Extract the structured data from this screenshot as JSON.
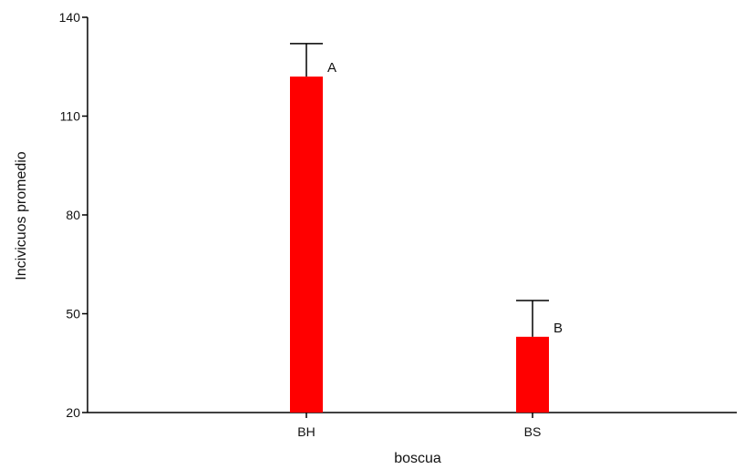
{
  "chart_data": {
    "type": "bar",
    "title": "",
    "xlabel": "boscua",
    "ylabel": "Incivicuos promedio",
    "categories": [
      "BH",
      "BS"
    ],
    "values": [
      122,
      43
    ],
    "error_upper": [
      132,
      54
    ],
    "annotations": [
      "A",
      "B"
    ],
    "ylim": [
      20,
      140
    ],
    "yticks": [
      20,
      50,
      80,
      110,
      140
    ],
    "ytick_labels": [
      "20",
      "50",
      "80",
      "110",
      "140"
    ],
    "grid": false,
    "legend": "none",
    "bar_color": "#ff0000",
    "axis_color": "#000000"
  }
}
